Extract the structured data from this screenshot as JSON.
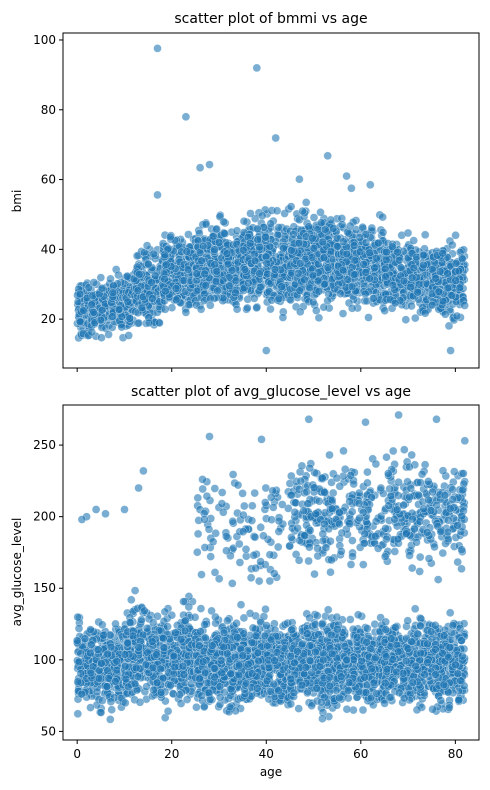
{
  "chart_data": [
    {
      "type": "scatter",
      "title": "scatter plot of bmmi vs age",
      "xlabel": "",
      "ylabel": "bmi",
      "xlim": [
        -3,
        85
      ],
      "ylim": [
        6,
        102
      ],
      "xticks": [
        0,
        20,
        40,
        60,
        80
      ],
      "show_xtick_labels": false,
      "yticks": [
        20,
        40,
        60,
        80,
        100
      ],
      "ytick_labels": [
        "20",
        "40",
        "60",
        "80",
        "100"
      ],
      "color": "#1f77b4",
      "grid": false,
      "outliers": [
        [
          17,
          97.6
        ],
        [
          38,
          92
        ],
        [
          23,
          78.0
        ],
        [
          42,
          71.9
        ],
        [
          53,
          66.8
        ],
        [
          26,
          63.4
        ],
        [
          28,
          64.3
        ],
        [
          57,
          61
        ],
        [
          58,
          57.5
        ],
        [
          17,
          55.6
        ],
        [
          47,
          60.1
        ],
        [
          62,
          58.5
        ],
        [
          40,
          11
        ],
        [
          79,
          11
        ]
      ],
      "bands": [
        {
          "x": [
            0,
            3
          ],
          "y_lo": 12,
          "y_hi": 33,
          "n": 120
        },
        {
          "x": [
            3,
            7
          ],
          "y_lo": 13,
          "y_hi": 34,
          "n": 110
        },
        {
          "x": [
            7,
            12
          ],
          "y_lo": 13,
          "y_hi": 37,
          "n": 130
        },
        {
          "x": [
            12,
            18
          ],
          "y_lo": 15,
          "y_hi": 43,
          "n": 200
        },
        {
          "x": [
            18,
            25
          ],
          "y_lo": 17,
          "y_hi": 48,
          "n": 260
        },
        {
          "x": [
            25,
            35
          ],
          "y_lo": 18,
          "y_hi": 52,
          "n": 380
        },
        {
          "x": [
            35,
            45
          ],
          "y_lo": 18,
          "y_hi": 55,
          "n": 380
        },
        {
          "x": [
            45,
            55
          ],
          "y_lo": 18,
          "y_hi": 56,
          "n": 380
        },
        {
          "x": [
            55,
            65
          ],
          "y_lo": 18,
          "y_hi": 53,
          "n": 340
        },
        {
          "x": [
            65,
            75
          ],
          "y_lo": 17,
          "y_hi": 47,
          "n": 300
        },
        {
          "x": [
            75,
            82
          ],
          "y_lo": 16,
          "y_hi": 46,
          "n": 260
        }
      ]
    },
    {
      "type": "scatter",
      "title": "scatter plot of avg_glucose_level vs age",
      "xlabel": "age",
      "ylabel": "avg_glucose_level",
      "xlim": [
        -3,
        85
      ],
      "ylim": [
        44,
        278
      ],
      "xticks": [
        0,
        20,
        40,
        60,
        80
      ],
      "xtick_labels": [
        "0",
        "20",
        "40",
        "60",
        "80"
      ],
      "show_xtick_labels": true,
      "yticks": [
        50,
        100,
        150,
        200,
        250
      ],
      "ytick_labels": [
        "50",
        "100",
        "150",
        "200",
        "250"
      ],
      "color": "#1f77b4",
      "grid": false,
      "outliers": [
        [
          4,
          205
        ],
        [
          2,
          200
        ],
        [
          6,
          202
        ],
        [
          68,
          271
        ],
        [
          49,
          268
        ],
        [
          76,
          268
        ],
        [
          61,
          266
        ],
        [
          28,
          256
        ],
        [
          82,
          253
        ],
        [
          39,
          254
        ],
        [
          14,
          232
        ],
        [
          13,
          220
        ],
        [
          10,
          205
        ],
        [
          1,
          198
        ]
      ],
      "bands": [
        {
          "x": [
            0,
            10
          ],
          "y_lo": 56,
          "y_hi": 135,
          "n": 380
        },
        {
          "x": [
            10,
            25
          ],
          "y_lo": 56,
          "y_hi": 150,
          "n": 560
        },
        {
          "x": [
            25,
            45
          ],
          "y_lo": 56,
          "y_hi": 140,
          "n": 820
        },
        {
          "x": [
            45,
            65
          ],
          "y_lo": 56,
          "y_hi": 140,
          "n": 800
        },
        {
          "x": [
            65,
            82
          ],
          "y_lo": 56,
          "y_hi": 140,
          "n": 620
        },
        {
          "x": [
            25,
            45
          ],
          "y_lo": 140,
          "y_hi": 245,
          "n": 110
        },
        {
          "x": [
            45,
            65
          ],
          "y_lo": 150,
          "y_hi": 255,
          "n": 260
        },
        {
          "x": [
            65,
            82
          ],
          "y_lo": 150,
          "y_hi": 258,
          "n": 260
        }
      ]
    }
  ]
}
